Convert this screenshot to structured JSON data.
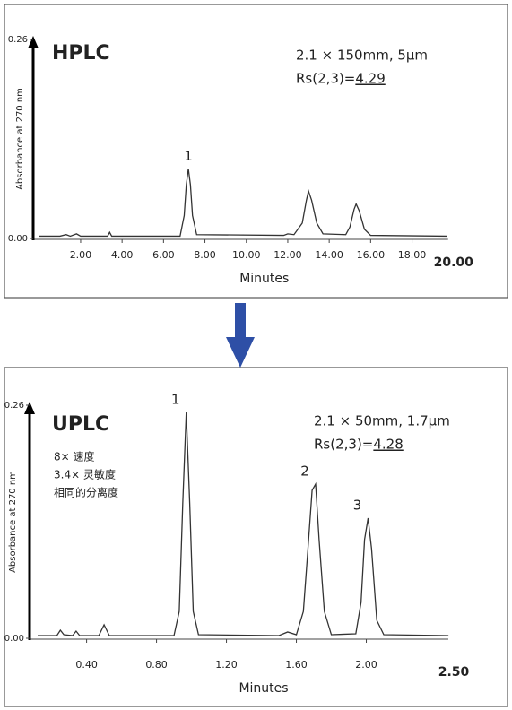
{
  "chart_data": [
    {
      "type": "line",
      "title": "HPLC",
      "column": "2.1 × 150mm, 5μm",
      "resolution_label": "Rs(2,3)=",
      "resolution": "4.29",
      "xlabel": "Minutes",
      "ylabel": "Absorbance at 270 nm",
      "accent_color": "#c0392b",
      "title_color": "#222222",
      "xlim": [
        0,
        20
      ],
      "ylim": [
        0,
        0.26
      ],
      "xticks": [
        {
          "value": 2,
          "label": "2.00"
        },
        {
          "value": 4,
          "label": "4.00"
        },
        {
          "value": 6,
          "label": "6.00"
        },
        {
          "value": 8,
          "label": "8.00"
        },
        {
          "value": 10,
          "label": "10.00"
        },
        {
          "value": 12,
          "label": "12.00"
        },
        {
          "value": 14,
          "label": "14.00"
        },
        {
          "value": 16,
          "label": "16.00"
        },
        {
          "value": 18,
          "label": "18.00"
        },
        {
          "value": 20,
          "label": "20.00"
        }
      ],
      "yticks": [
        {
          "value": 0,
          "label": "0.00"
        },
        {
          "value": 0.26,
          "label": "0.26"
        }
      ],
      "x": [
        0,
        1.0,
        1.3,
        1.5,
        1.8,
        2.0,
        3.3,
        3.4,
        3.5,
        6.8,
        7.0,
        7.1,
        7.2,
        7.3,
        7.4,
        7.6,
        11.8,
        12.0,
        12.3,
        12.7,
        12.9,
        13.0,
        13.15,
        13.4,
        13.7,
        14.8,
        15.0,
        15.2,
        15.3,
        15.45,
        15.7,
        16.0,
        19.7
      ],
      "series": [
        {
          "color": "#333333",
          "values": [
            0.003,
            0.003,
            0.005,
            0.003,
            0.006,
            0.003,
            0.003,
            0.008,
            0.003,
            0.003,
            0.03,
            0.07,
            0.091,
            0.07,
            0.03,
            0.005,
            0.004,
            0.006,
            0.005,
            0.02,
            0.05,
            0.062,
            0.05,
            0.02,
            0.006,
            0.005,
            0.015,
            0.038,
            0.045,
            0.036,
            0.012,
            0.004,
            0.003
          ]
        }
      ],
      "peaks": [
        {
          "label": "1",
          "x": 7.2,
          "value": 0.091
        }
      ]
    },
    {
      "type": "line",
      "title": "UPLC",
      "column": "2.1 × 50mm, 1.7μm",
      "resolution_label": "Rs(2,3)=",
      "resolution": "4.28",
      "notes": [
        "8× 速度",
        "3.4× 灵敏度",
        "相同的分离度"
      ],
      "xlabel": "Minutes",
      "ylabel": "Absorbance at 270 nm",
      "accent_color": "#c0392b",
      "title_color": "#c0392b",
      "xlim": [
        0.12,
        2.5
      ],
      "ylim": [
        0,
        0.26
      ],
      "xticks": [
        {
          "value": 0.4,
          "label": "0.40"
        },
        {
          "value": 0.8,
          "label": "0.80"
        },
        {
          "value": 1.2,
          "label": "1.20"
        },
        {
          "value": 1.6,
          "label": "1.60"
        },
        {
          "value": 2.0,
          "label": "2.00"
        },
        {
          "value": 2.5,
          "label": "2.50"
        }
      ],
      "yticks": [
        {
          "value": 0,
          "label": "0.00"
        },
        {
          "value": 0.26,
          "label": "0.26"
        }
      ],
      "x": [
        0.12,
        0.23,
        0.25,
        0.27,
        0.32,
        0.34,
        0.36,
        0.47,
        0.5,
        0.53,
        0.9,
        0.93,
        0.95,
        0.97,
        0.99,
        1.01,
        1.04,
        1.5,
        1.55,
        1.6,
        1.64,
        1.67,
        1.69,
        1.71,
        1.73,
        1.76,
        1.8,
        1.94,
        1.97,
        1.99,
        2.01,
        2.03,
        2.06,
        2.1,
        2.47
      ],
      "series": [
        {
          "color": "#333333",
          "values": [
            0.003,
            0.003,
            0.009,
            0.004,
            0.003,
            0.008,
            0.003,
            0.003,
            0.015,
            0.003,
            0.003,
            0.03,
            0.15,
            0.252,
            0.15,
            0.03,
            0.004,
            0.003,
            0.007,
            0.004,
            0.03,
            0.11,
            0.165,
            0.172,
            0.11,
            0.03,
            0.004,
            0.005,
            0.04,
            0.11,
            0.134,
            0.1,
            0.02,
            0.004,
            0.003
          ]
        }
      ],
      "peaks": [
        {
          "label": "1",
          "x": 0.97,
          "value": 0.252
        },
        {
          "label": "2",
          "x": 1.71,
          "value": 0.172
        },
        {
          "label": "3",
          "x": 2.01,
          "value": 0.134
        }
      ]
    }
  ]
}
